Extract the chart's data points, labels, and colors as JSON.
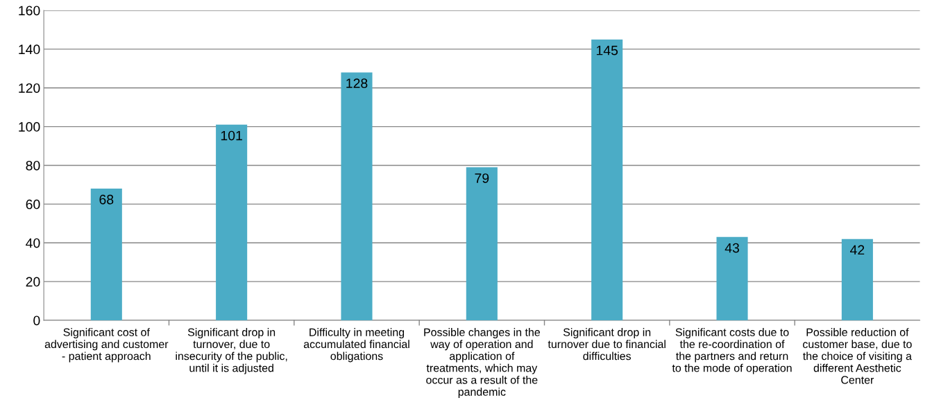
{
  "chart_data": {
    "type": "bar",
    "categories": [
      "Significant cost of\nadvertising and customer\n- patient approach",
      "Significant drop in\nturnover, due to\ninsecurity of the public,\nuntil it is adjusted",
      "Difficulty in meeting\naccumulated financial\nobligations",
      "Possible changes in the\nway of operation and\napplication of\ntreatments, which may\noccur as a result of the\npandemic",
      "Significant drop in\nturnover due to financial\ndifficulties",
      "Significant costs due to\nthe re-coordination of\nthe partners and return\nto the mode of operation",
      "Possible reduction of\ncustomer base, due to\nthe choice of visiting a\ndifferent Aesthetic\nCenter"
    ],
    "values": [
      68,
      101,
      128,
      79,
      145,
      43,
      42
    ],
    "color": "#4bacc6",
    "ylim": [
      0,
      160
    ],
    "yticks": [
      0,
      20,
      40,
      60,
      80,
      100,
      120,
      140,
      160
    ],
    "grid": "y",
    "data_labels": true
  }
}
